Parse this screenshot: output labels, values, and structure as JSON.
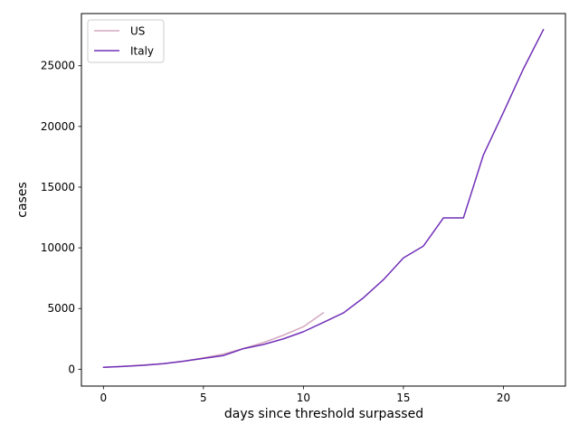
{
  "chart_data": {
    "type": "line",
    "title": "",
    "xlabel": "days since threshold surpassed",
    "ylabel": "cases",
    "xlim": [
      -1.1,
      23.1
    ],
    "ylim": [
      -1390,
      29300
    ],
    "xticks": [
      0,
      5,
      10,
      15,
      20
    ],
    "yticks": [
      0,
      5000,
      10000,
      15000,
      20000,
      25000
    ],
    "grid": false,
    "legend_position": "top-left",
    "series": [
      {
        "name": "US",
        "color": "#d4a8be",
        "x": [
          0,
          1,
          2,
          3,
          4,
          5,
          6,
          7,
          8,
          9,
          10,
          11
        ],
        "values": [
          160,
          240,
          340,
          460,
          650,
          940,
          1250,
          1700,
          2200,
          2800,
          3500,
          4650
        ]
      },
      {
        "name": "Italy",
        "color": "#7130b8",
        "x": [
          0,
          1,
          2,
          3,
          4,
          5,
          6,
          7,
          8,
          9,
          10,
          11,
          12,
          13,
          14,
          15,
          16,
          17,
          18,
          19,
          20,
          21,
          22
        ],
        "values": [
          155,
          229,
          322,
          453,
          655,
          888,
          1128,
          1694,
          2036,
          2502,
          3089,
          3858,
          4636,
          5883,
          7375,
          9172,
          10149,
          12462,
          12462,
          17660,
          21157,
          24747,
          27980
        ]
      }
    ]
  }
}
